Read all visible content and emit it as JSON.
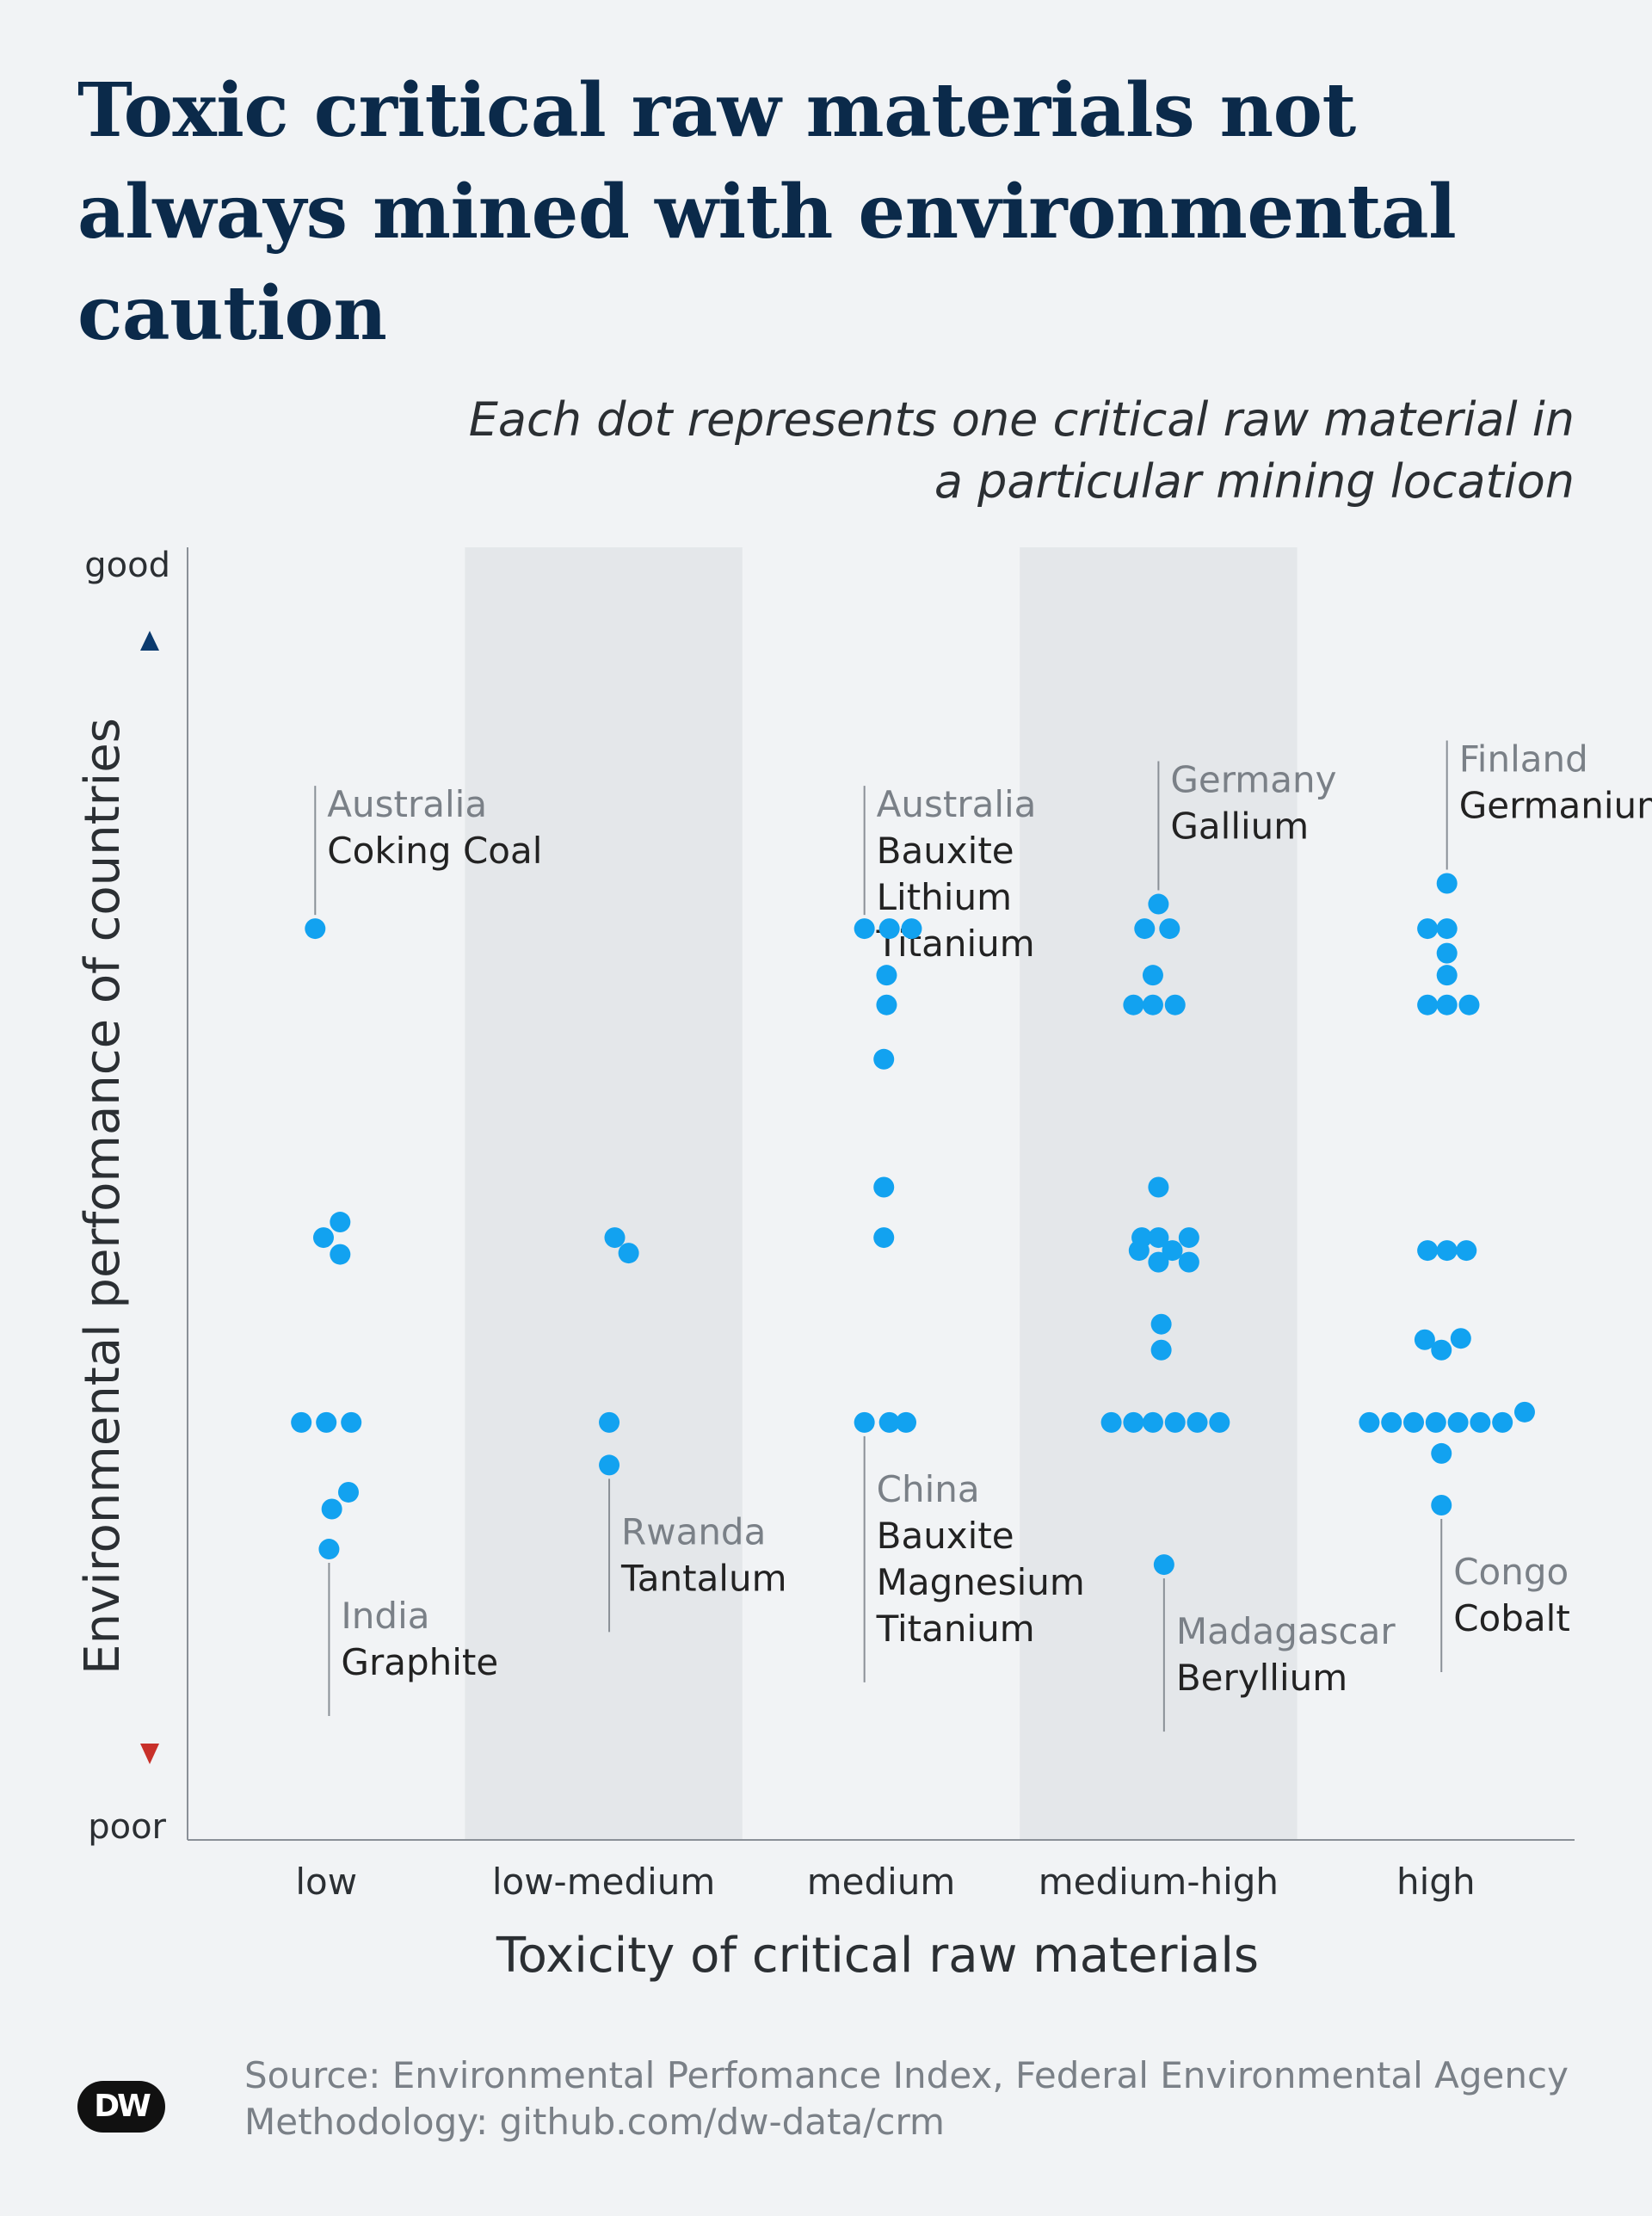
{
  "title": "Toxic critical raw materials not always mined with environmental caution",
  "subtitle": "Each dot represents one critical raw material in a particular mining location",
  "source_line": "Source: Environmental Perfomance Index, Federal Environmental Agency",
  "methodology_line": "Methodology: github.com/dw-data/crm",
  "logo_text": "DW",
  "colors": {
    "dot": "#12a2f0",
    "title": "#0b2a4a",
    "band": "#e4e7ea",
    "country": "#7a8087",
    "material": "#222222",
    "arrow_good_top": "#0b3a6e",
    "arrow_good_bottom": "#12a2f0",
    "arrow_poor_top": "#f2c22a",
    "arrow_poor_bottom": "#c8302a"
  },
  "chart_data": {
    "type": "scatter",
    "title": "Toxic critical raw materials not always mined with environmental caution",
    "xlabel": "Toxicity of critical raw materials",
    "ylabel": "Environmental perfomance of countries",
    "categories": [
      "low",
      "low-medium",
      "medium",
      "medium-high",
      "high"
    ],
    "y_top_label": "good",
    "y_bottom_label": "poor",
    "ylim": [
      0,
      100
    ],
    "shaded_categories": [
      "low-medium",
      "medium-high"
    ],
    "points": [
      {
        "cat": 0,
        "dx": -0.04,
        "y": 70.5
      },
      {
        "cat": 0,
        "dx": 0.05,
        "y": 47.8
      },
      {
        "cat": 0,
        "dx": -0.01,
        "y": 46.6
      },
      {
        "cat": 0,
        "dx": 0.05,
        "y": 45.3
      },
      {
        "cat": 0,
        "dx": -0.09,
        "y": 32.3
      },
      {
        "cat": 0,
        "dx": 0.0,
        "y": 32.3
      },
      {
        "cat": 0,
        "dx": 0.09,
        "y": 32.3
      },
      {
        "cat": 0,
        "dx": 0.08,
        "y": 26.9
      },
      {
        "cat": 0,
        "dx": 0.02,
        "y": 25.6
      },
      {
        "cat": 0,
        "dx": 0.01,
        "y": 22.5
      },
      {
        "cat": 1,
        "dx": 0.04,
        "y": 46.6
      },
      {
        "cat": 1,
        "dx": 0.09,
        "y": 45.4
      },
      {
        "cat": 1,
        "dx": 0.02,
        "y": 32.3
      },
      {
        "cat": 1,
        "dx": 0.02,
        "y": 29.0
      },
      {
        "cat": 2,
        "dx": -0.06,
        "y": 70.5
      },
      {
        "cat": 2,
        "dx": 0.03,
        "y": 70.5
      },
      {
        "cat": 2,
        "dx": 0.11,
        "y": 70.5
      },
      {
        "cat": 2,
        "dx": 0.02,
        "y": 66.9
      },
      {
        "cat": 2,
        "dx": 0.02,
        "y": 64.6
      },
      {
        "cat": 2,
        "dx": 0.01,
        "y": 60.4
      },
      {
        "cat": 2,
        "dx": 0.01,
        "y": 50.5
      },
      {
        "cat": 2,
        "dx": 0.01,
        "y": 46.6
      },
      {
        "cat": 2,
        "dx": -0.06,
        "y": 32.3
      },
      {
        "cat": 2,
        "dx": 0.03,
        "y": 32.3
      },
      {
        "cat": 2,
        "dx": 0.09,
        "y": 32.3
      },
      {
        "cat": 3,
        "dx": 0.0,
        "y": 72.4
      },
      {
        "cat": 3,
        "dx": -0.05,
        "y": 70.5
      },
      {
        "cat": 3,
        "dx": 0.04,
        "y": 70.5
      },
      {
        "cat": 3,
        "dx": -0.02,
        "y": 66.9
      },
      {
        "cat": 3,
        "dx": -0.09,
        "y": 64.6
      },
      {
        "cat": 3,
        "dx": -0.02,
        "y": 64.6
      },
      {
        "cat": 3,
        "dx": 0.06,
        "y": 64.6
      },
      {
        "cat": 3,
        "dx": 0.0,
        "y": 50.5
      },
      {
        "cat": 3,
        "dx": -0.06,
        "y": 46.6
      },
      {
        "cat": 3,
        "dx": 0.0,
        "y": 46.6
      },
      {
        "cat": 3,
        "dx": 0.11,
        "y": 46.6
      },
      {
        "cat": 3,
        "dx": -0.07,
        "y": 45.6
      },
      {
        "cat": 3,
        "dx": 0.05,
        "y": 45.6
      },
      {
        "cat": 3,
        "dx": 0.0,
        "y": 44.7
      },
      {
        "cat": 3,
        "dx": 0.11,
        "y": 44.7
      },
      {
        "cat": 3,
        "dx": 0.01,
        "y": 39.9
      },
      {
        "cat": 3,
        "dx": 0.01,
        "y": 37.9
      },
      {
        "cat": 3,
        "dx": -0.17,
        "y": 32.3
      },
      {
        "cat": 3,
        "dx": -0.09,
        "y": 32.3
      },
      {
        "cat": 3,
        "dx": -0.02,
        "y": 32.3
      },
      {
        "cat": 3,
        "dx": 0.06,
        "y": 32.3
      },
      {
        "cat": 3,
        "dx": 0.14,
        "y": 32.3
      },
      {
        "cat": 3,
        "dx": 0.22,
        "y": 32.3
      },
      {
        "cat": 3,
        "dx": 0.02,
        "y": 21.3
      },
      {
        "cat": 4,
        "dx": 0.04,
        "y": 74.0
      },
      {
        "cat": 4,
        "dx": -0.03,
        "y": 70.5
      },
      {
        "cat": 4,
        "dx": 0.04,
        "y": 70.5
      },
      {
        "cat": 4,
        "dx": 0.04,
        "y": 68.6
      },
      {
        "cat": 4,
        "dx": 0.04,
        "y": 66.9
      },
      {
        "cat": 4,
        "dx": -0.03,
        "y": 64.6
      },
      {
        "cat": 4,
        "dx": 0.04,
        "y": 64.6
      },
      {
        "cat": 4,
        "dx": 0.12,
        "y": 64.6
      },
      {
        "cat": 4,
        "dx": -0.03,
        "y": 45.6
      },
      {
        "cat": 4,
        "dx": 0.04,
        "y": 45.6
      },
      {
        "cat": 4,
        "dx": 0.11,
        "y": 45.6
      },
      {
        "cat": 4,
        "dx": -0.04,
        "y": 38.7
      },
      {
        "cat": 4,
        "dx": 0.02,
        "y": 37.9
      },
      {
        "cat": 4,
        "dx": 0.09,
        "y": 38.8
      },
      {
        "cat": 4,
        "dx": -0.24,
        "y": 32.3
      },
      {
        "cat": 4,
        "dx": -0.16,
        "y": 32.3
      },
      {
        "cat": 4,
        "dx": -0.08,
        "y": 32.3
      },
      {
        "cat": 4,
        "dx": 0.0,
        "y": 32.3
      },
      {
        "cat": 4,
        "dx": 0.08,
        "y": 32.3
      },
      {
        "cat": 4,
        "dx": 0.16,
        "y": 32.3
      },
      {
        "cat": 4,
        "dx": 0.24,
        "y": 32.3
      },
      {
        "cat": 4,
        "dx": 0.32,
        "y": 33.1
      },
      {
        "cat": 4,
        "dx": 0.02,
        "y": 29.9
      },
      {
        "cat": 4,
        "dx": 0.02,
        "y": 25.9
      }
    ],
    "annotations": [
      {
        "cat": 0,
        "dx": -0.04,
        "y": 70.5,
        "dir": "up",
        "country": "Australia",
        "materials": [
          "Coking Coal"
        ]
      },
      {
        "cat": 0,
        "dx": 0.01,
        "y": 22.5,
        "dir": "down",
        "country": "India",
        "materials": [
          "Graphite"
        ]
      },
      {
        "cat": 1,
        "dx": 0.02,
        "y": 29.0,
        "dir": "down",
        "country": "Rwanda",
        "materials": [
          "Tantalum"
        ]
      },
      {
        "cat": 2,
        "dx": -0.06,
        "y": 70.5,
        "dir": "up",
        "country": "Australia",
        "materials": [
          "Bauxite",
          "Lithium",
          "Titanium"
        ]
      },
      {
        "cat": 2,
        "dx": -0.06,
        "y": 32.3,
        "dir": "down",
        "country": "China",
        "materials": [
          "Bauxite",
          "Magnesium",
          "Titanium"
        ]
      },
      {
        "cat": 3,
        "dx": 0.0,
        "y": 72.4,
        "dir": "up",
        "country": "Germany",
        "materials": [
          "Gallium"
        ]
      },
      {
        "cat": 3,
        "dx": 0.02,
        "y": 21.3,
        "dir": "down",
        "country": "Madagascar",
        "materials": [
          "Beryllium"
        ]
      },
      {
        "cat": 4,
        "dx": 0.04,
        "y": 74.0,
        "dir": "up",
        "country": "Finland",
        "materials": [
          "Germanium"
        ]
      },
      {
        "cat": 4,
        "dx": 0.02,
        "y": 25.9,
        "dir": "down",
        "country": "Congo",
        "materials": [
          "Cobalt"
        ]
      }
    ]
  }
}
